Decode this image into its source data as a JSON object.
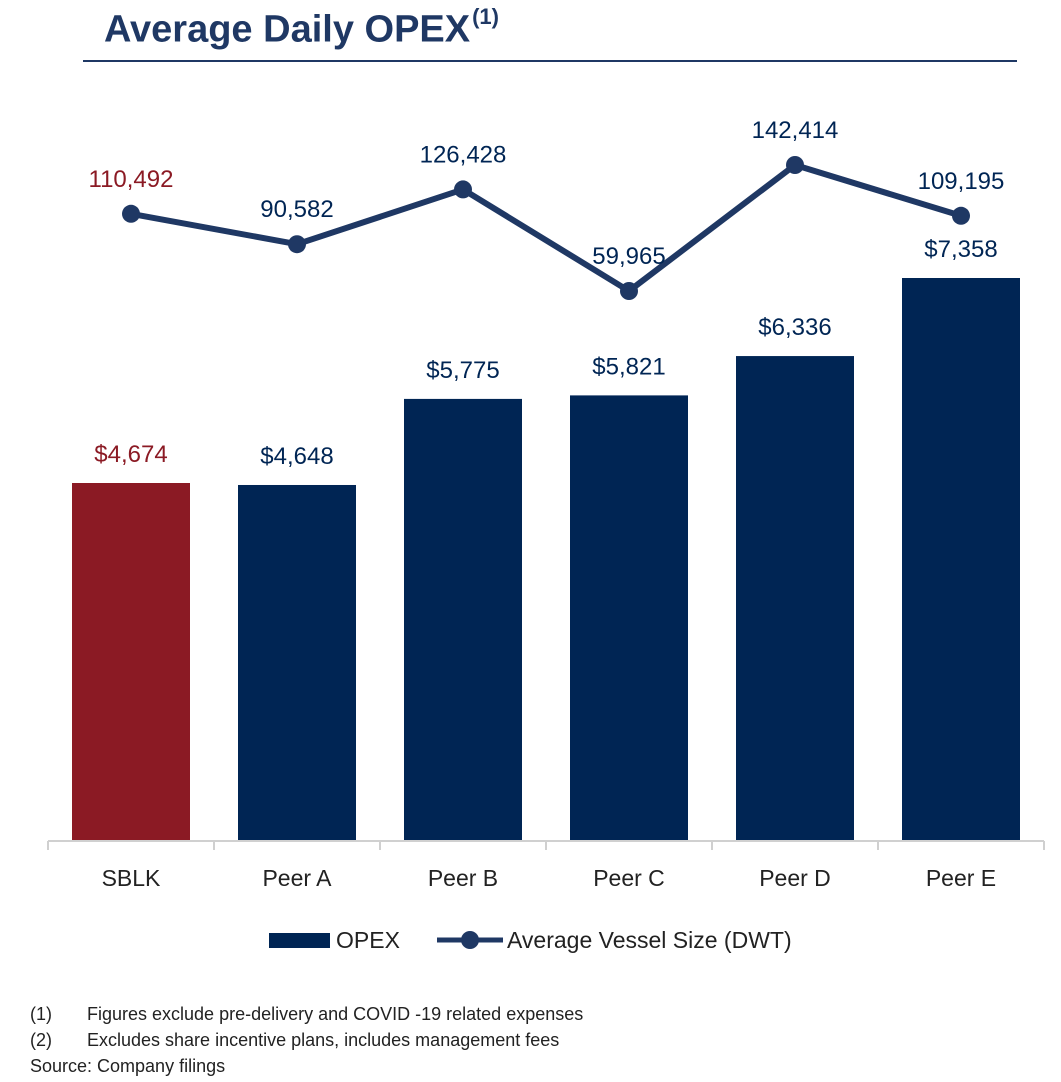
{
  "title": {
    "text": "Average Daily OPEX",
    "superscript": "(1)"
  },
  "colors": {
    "navy": "#002554",
    "highlight": "#8b1a24",
    "title": "#1f3864",
    "axis": "#d0d0d0"
  },
  "chart_data": {
    "type": "bar",
    "title": "Average Daily OPEX",
    "categories": [
      "SBLK",
      "Peer A",
      "Peer B",
      "Peer C",
      "Peer D",
      "Peer E"
    ],
    "series": [
      {
        "name": "OPEX",
        "type": "bar",
        "values": [
          4674,
          4648,
          5775,
          5821,
          6336,
          7358
        ],
        "labels": [
          "$4,674",
          "$4,648",
          "$5,775",
          "$5,821",
          "$6,336",
          "$7,358"
        ],
        "highlight_index": 0
      },
      {
        "name": "Average Vessel Size (DWT)",
        "type": "line",
        "values": [
          110492,
          90582,
          126428,
          59965,
          142414,
          109195
        ],
        "labels": [
          "110,492",
          "90,582",
          "126,428",
          "59,965",
          "142,414",
          "109,195"
        ]
      }
    ],
    "xlabel": "",
    "ylabel": "",
    "grid": false,
    "legend_position": "bottom"
  },
  "legend": {
    "bar_label": "OPEX",
    "line_label": "Average Vessel Size (DWT)"
  },
  "footnotes": [
    {
      "num": "(1)",
      "text": "Figures exclude pre-delivery and COVID -19 related expenses"
    },
    {
      "num": "(2)",
      "text": "Excludes share incentive plans, includes management fees"
    }
  ],
  "source": "Source: Company filings"
}
